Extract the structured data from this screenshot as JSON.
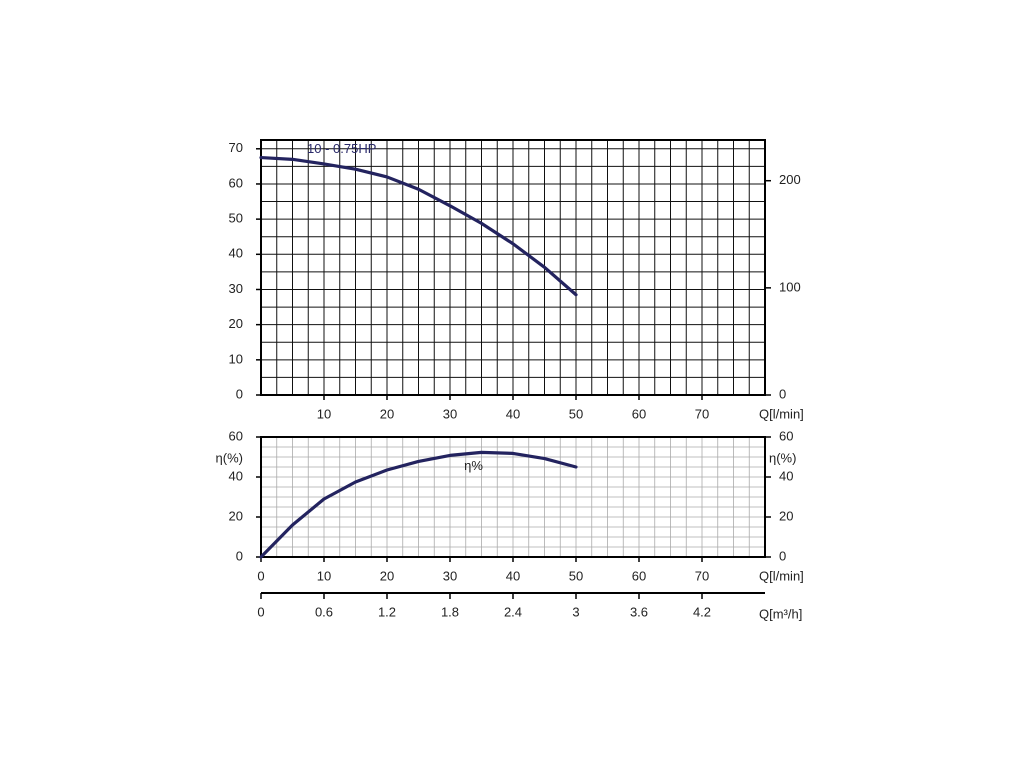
{
  "chart_data": [
    {
      "type": "line",
      "xlabel": "Q[l/min]",
      "xlim": [
        0,
        80
      ],
      "xticks": [
        10,
        20,
        30,
        40,
        50,
        60,
        70
      ],
      "ylim": [
        0,
        72.5
      ],
      "yticks": [
        0,
        10,
        20,
        30,
        40,
        50,
        60,
        70
      ],
      "y2lim": [
        0,
        238
      ],
      "y2ticks": [
        0,
        100,
        200
      ],
      "grid": true,
      "grid_step": [
        2.5,
        5
      ],
      "x": [
        0,
        5,
        10,
        15,
        20,
        25,
        30,
        35,
        40,
        45,
        50
      ],
      "series": [
        {
          "name": "10 - 0.75HP",
          "color": "#23235f",
          "values": [
            67.5,
            67,
            65.7,
            64.2,
            62,
            58.5,
            53.8,
            48.8,
            43,
            36.3,
            28.5
          ]
        }
      ]
    },
    {
      "type": "line",
      "xlabel": "Q[l/min]",
      "ylabel": "η(%)",
      "y2label": "η(%)",
      "annotation": "η%",
      "xlim": [
        0,
        80
      ],
      "xticks": [
        0,
        10,
        20,
        30,
        40,
        50,
        60,
        70
      ],
      "ylim": [
        0,
        60
      ],
      "yticks": [
        0,
        20,
        40,
        60
      ],
      "y2lim": [
        0,
        60
      ],
      "y2ticks": [
        0,
        20,
        40,
        60
      ],
      "x2label": "Q[m³/h]",
      "x2lim": [
        0,
        4.8
      ],
      "x2ticks": [
        0,
        0.6,
        1.2,
        1.8,
        2.4,
        3,
        3.6,
        4.2
      ],
      "grid": true,
      "grid_step": [
        2.5,
        5
      ],
      "x": [
        0,
        5,
        10,
        15,
        20,
        25,
        30,
        35,
        40,
        45,
        50
      ],
      "series": [
        {
          "color": "#23235f",
          "values": [
            0,
            16,
            29,
            37.5,
            43.5,
            47.8,
            50.8,
            52.3,
            51.8,
            49.2,
            45
          ]
        }
      ]
    }
  ]
}
